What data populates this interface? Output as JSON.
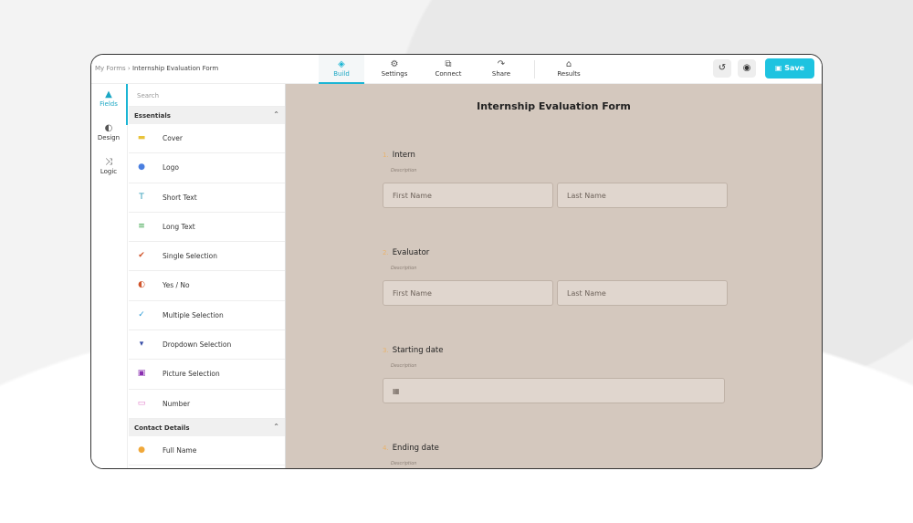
{
  "breadcrumb": {
    "root": "My Forms",
    "sep": "›",
    "current": "Internship Evaluation Form"
  },
  "tabs": [
    {
      "label": "Build",
      "icon": "layers-icon"
    },
    {
      "label": "Settings",
      "icon": "gear-icon"
    },
    {
      "label": "Connect",
      "icon": "puzzle-icon"
    },
    {
      "label": "Share",
      "icon": "share-arrow-icon"
    },
    {
      "label": "Results",
      "icon": "inbox-icon"
    }
  ],
  "actions": {
    "save_label": "Save",
    "accent": "#1ec3e0"
  },
  "rail": [
    {
      "label": "Fields"
    },
    {
      "label": "Design"
    },
    {
      "label": "Logic"
    }
  ],
  "panel": {
    "search_placeholder": "Search",
    "sections": [
      {
        "title": "Essentials",
        "items": [
          {
            "label": "Cover",
            "color": "#e8c33a"
          },
          {
            "label": "Logo",
            "color": "#4a7fe0"
          },
          {
            "label": "Short Text",
            "color": "#2a9ab5"
          },
          {
            "label": "Long Text",
            "color": "#38a348"
          },
          {
            "label": "Single Selection",
            "color": "#d0532a"
          },
          {
            "label": "Yes / No",
            "color": "#d0532a"
          },
          {
            "label": "Multiple Selection",
            "color": "#2a9ad6"
          },
          {
            "label": "Dropdown Selection",
            "color": "#3a4fa8"
          },
          {
            "label": "Picture Selection",
            "color": "#8a2fb0"
          },
          {
            "label": "Number",
            "color": "#e07ac8"
          }
        ]
      },
      {
        "title": "Contact Details",
        "items": [
          {
            "label": "Full Name",
            "color": "#f0a83a"
          }
        ]
      }
    ]
  },
  "form": {
    "title": "Internship Evaluation Form",
    "questions": [
      {
        "number": "1.",
        "label": "Intern",
        "description": "Description",
        "first": "First Name",
        "last": "Last Name"
      },
      {
        "number": "2.",
        "label": "Evaluator",
        "description": "Description",
        "first": "First Name",
        "last": "Last Name"
      },
      {
        "number": "3.",
        "label": "Starting date",
        "description": "Description"
      },
      {
        "number": "4.",
        "label": "Ending date",
        "description": "Description"
      }
    ]
  }
}
